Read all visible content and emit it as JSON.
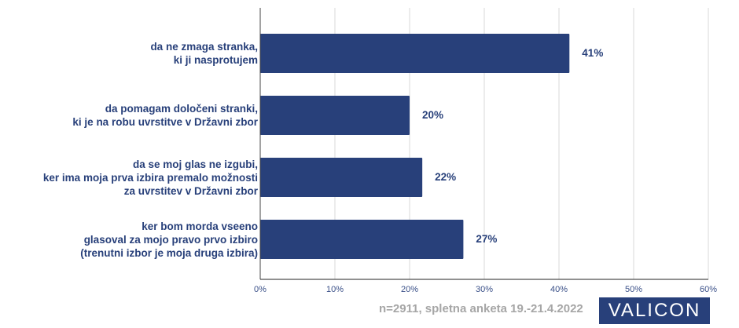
{
  "chart_data": {
    "type": "bar",
    "orientation": "horizontal",
    "categories": [
      "da ne zmaga stranka,\nki ji nasprotujem",
      "da pomagam določeni stranki,\nki je na robu uvrstitve v Državni zbor",
      "da se moj glas ne izgubi,\nker ima moja prva izbira premalo možnosti\nza uvrstitev v Državni zbor",
      "ker bom morda vseeno\nglasoval za mojo pravo prvo izbiro\n(trenutni izbor je moja druga izbira)"
    ],
    "values": [
      41.4,
      20.0,
      21.7,
      27.2
    ],
    "data_labels": [
      "41%",
      "20%",
      "22%",
      "27%"
    ],
    "xlim": [
      0,
      60
    ],
    "x_ticks": [
      "0%",
      "10%",
      "20%",
      "30%",
      "40%",
      "50%",
      "60%"
    ],
    "grid": true,
    "bar_color": "#28407a",
    "title": "",
    "xlabel": "",
    "ylabel": ""
  },
  "footnote": "n=2911, spletna anketa 19.-21.4.2022",
  "logo_text": "VALICON",
  "colors": {
    "accent": "#28407a",
    "footnote": "#a6a6a6"
  }
}
